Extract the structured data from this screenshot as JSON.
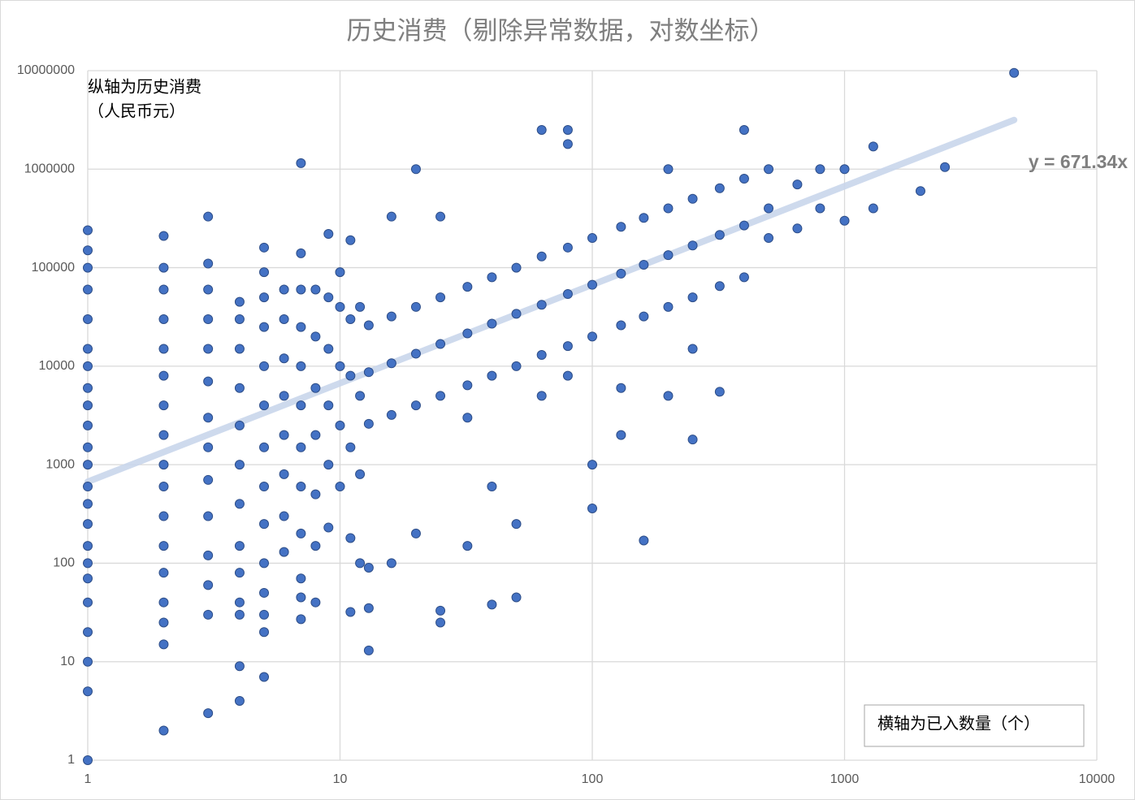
{
  "chart_data": {
    "type": "scatter",
    "title": "历史消费（剔除异常数据，对数坐标）",
    "annotations": [
      "纵轴为历史消费",
      "（人民币元）",
      "横轴为已入数量（个）"
    ],
    "xscale": "log",
    "yscale": "log",
    "xlim": [
      1,
      10000
    ],
    "ylim": [
      1,
      10000000
    ],
    "xticks": [
      1,
      10,
      100,
      1000,
      10000
    ],
    "yticks": [
      1,
      10,
      100,
      1000,
      10000,
      100000,
      1000000,
      10000000
    ],
    "grid": true,
    "trendline": {
      "label": "y = 671.34x",
      "slope": 671.34,
      "xlim": [
        1,
        4700
      ],
      "color": "#c9d6ec"
    },
    "series": [
      {
        "color": "#4472c4",
        "x": [
          1,
          1,
          1,
          1,
          1,
          1,
          1,
          1,
          1,
          1,
          1,
          1,
          1,
          1,
          1,
          1,
          1,
          1,
          1,
          1,
          1,
          1,
          1,
          2,
          2,
          2,
          2,
          2,
          2,
          2,
          2,
          2,
          2,
          2,
          2,
          2,
          2,
          2,
          2,
          2,
          3,
          3,
          3,
          3,
          3,
          3,
          3,
          3,
          3,
          3,
          3,
          3,
          3,
          3,
          4,
          4,
          4,
          4,
          4,
          4,
          4,
          4,
          4,
          4,
          4,
          4,
          4,
          5,
          5,
          5,
          5,
          5,
          5,
          5,
          5,
          5,
          5,
          5,
          5,
          5,
          5,
          6,
          6,
          6,
          6,
          6,
          6,
          6,
          6,
          7,
          7,
          7,
          7,
          7,
          7,
          7,
          7,
          7,
          7,
          7,
          7,
          8,
          8,
          8,
          8,
          8,
          8,
          8,
          9,
          9,
          9,
          9,
          9,
          9,
          10,
          10,
          10,
          10,
          10,
          11,
          11,
          11,
          11,
          11,
          11,
          12,
          12,
          12,
          12,
          13,
          13,
          13,
          13,
          13,
          13,
          16,
          16,
          16,
          16,
          16,
          20,
          20,
          20,
          20,
          20,
          25,
          25,
          25,
          25,
          25,
          25,
          32,
          32,
          32,
          32,
          32,
          40,
          40,
          40,
          40,
          40,
          50,
          50,
          50,
          50,
          50,
          63,
          63,
          63,
          63,
          63,
          80,
          80,
          80,
          80,
          80,
          80,
          100,
          100,
          100,
          100,
          100,
          130,
          130,
          130,
          130,
          130,
          160,
          160,
          160,
          160,
          200,
          200,
          200,
          200,
          200,
          250,
          250,
          250,
          250,
          250,
          320,
          320,
          320,
          320,
          400,
          400,
          400,
          400,
          500,
          500,
          500,
          650,
          650,
          800,
          800,
          1000,
          1000,
          1300,
          1300,
          2000,
          2500,
          4700
        ],
        "values": [
          1,
          5,
          10,
          20,
          40,
          70,
          100,
          150,
          250,
          400,
          600,
          1000,
          1500,
          2500,
          4000,
          6000,
          10000,
          15000,
          30000,
          60000,
          100000,
          150000,
          240000,
          2,
          15,
          25,
          40,
          80,
          150,
          300,
          600,
          1000,
          2000,
          4000,
          8000,
          15000,
          30000,
          60000,
          100000,
          210000,
          3,
          30,
          60,
          120,
          300,
          700,
          1500,
          3000,
          7000,
          15000,
          30000,
          60000,
          110000,
          330000,
          4,
          9,
          30,
          40,
          80,
          150,
          400,
          1000,
          2500,
          6000,
          15000,
          30000,
          45000,
          7,
          20,
          30,
          50,
          100,
          250,
          600,
          1500,
          4000,
          10000,
          25000,
          50000,
          90000,
          160000,
          130,
          300,
          800,
          2000,
          5000,
          12000,
          30000,
          60000,
          27,
          45,
          70,
          200,
          600,
          1500,
          4000,
          10000,
          25000,
          60000,
          140000,
          1150000,
          40,
          150,
          500,
          2000,
          6000,
          20000,
          60000,
          230,
          1000,
          4000,
          15000,
          50000,
          220000,
          600,
          2500,
          10000,
          40000,
          90000,
          32,
          180,
          1500,
          8000,
          30000,
          190000,
          100,
          800,
          5000,
          40000,
          13,
          35,
          90,
          2600,
          8700,
          26000,
          100,
          3200,
          10700,
          32000,
          330000,
          200,
          4000,
          13400,
          40000,
          1000000,
          25,
          33,
          5000,
          16800,
          50000,
          330000,
          150,
          3000,
          6400,
          21500,
          64000,
          38,
          600,
          8000,
          27000,
          80000,
          45,
          250,
          10000,
          34000,
          100000,
          5000,
          13000,
          42000,
          130000,
          2500000,
          8000,
          16000,
          54000,
          160000,
          1800000,
          2500000,
          360,
          1000,
          20000,
          67000,
          200000,
          2000,
          6000,
          26000,
          87000,
          260000,
          170,
          32000,
          107000,
          320000,
          5000,
          40000,
          134000,
          400000,
          1000000,
          1800,
          15000,
          50000,
          168000,
          500000,
          5500,
          65000,
          215000,
          640000,
          80000,
          268000,
          800000,
          2500000,
          200000,
          400000,
          1000000,
          250000,
          700000,
          400000,
          1000000,
          300000,
          1000000,
          400000,
          1700000,
          600000,
          1050000,
          9500000
        ]
      }
    ]
  }
}
